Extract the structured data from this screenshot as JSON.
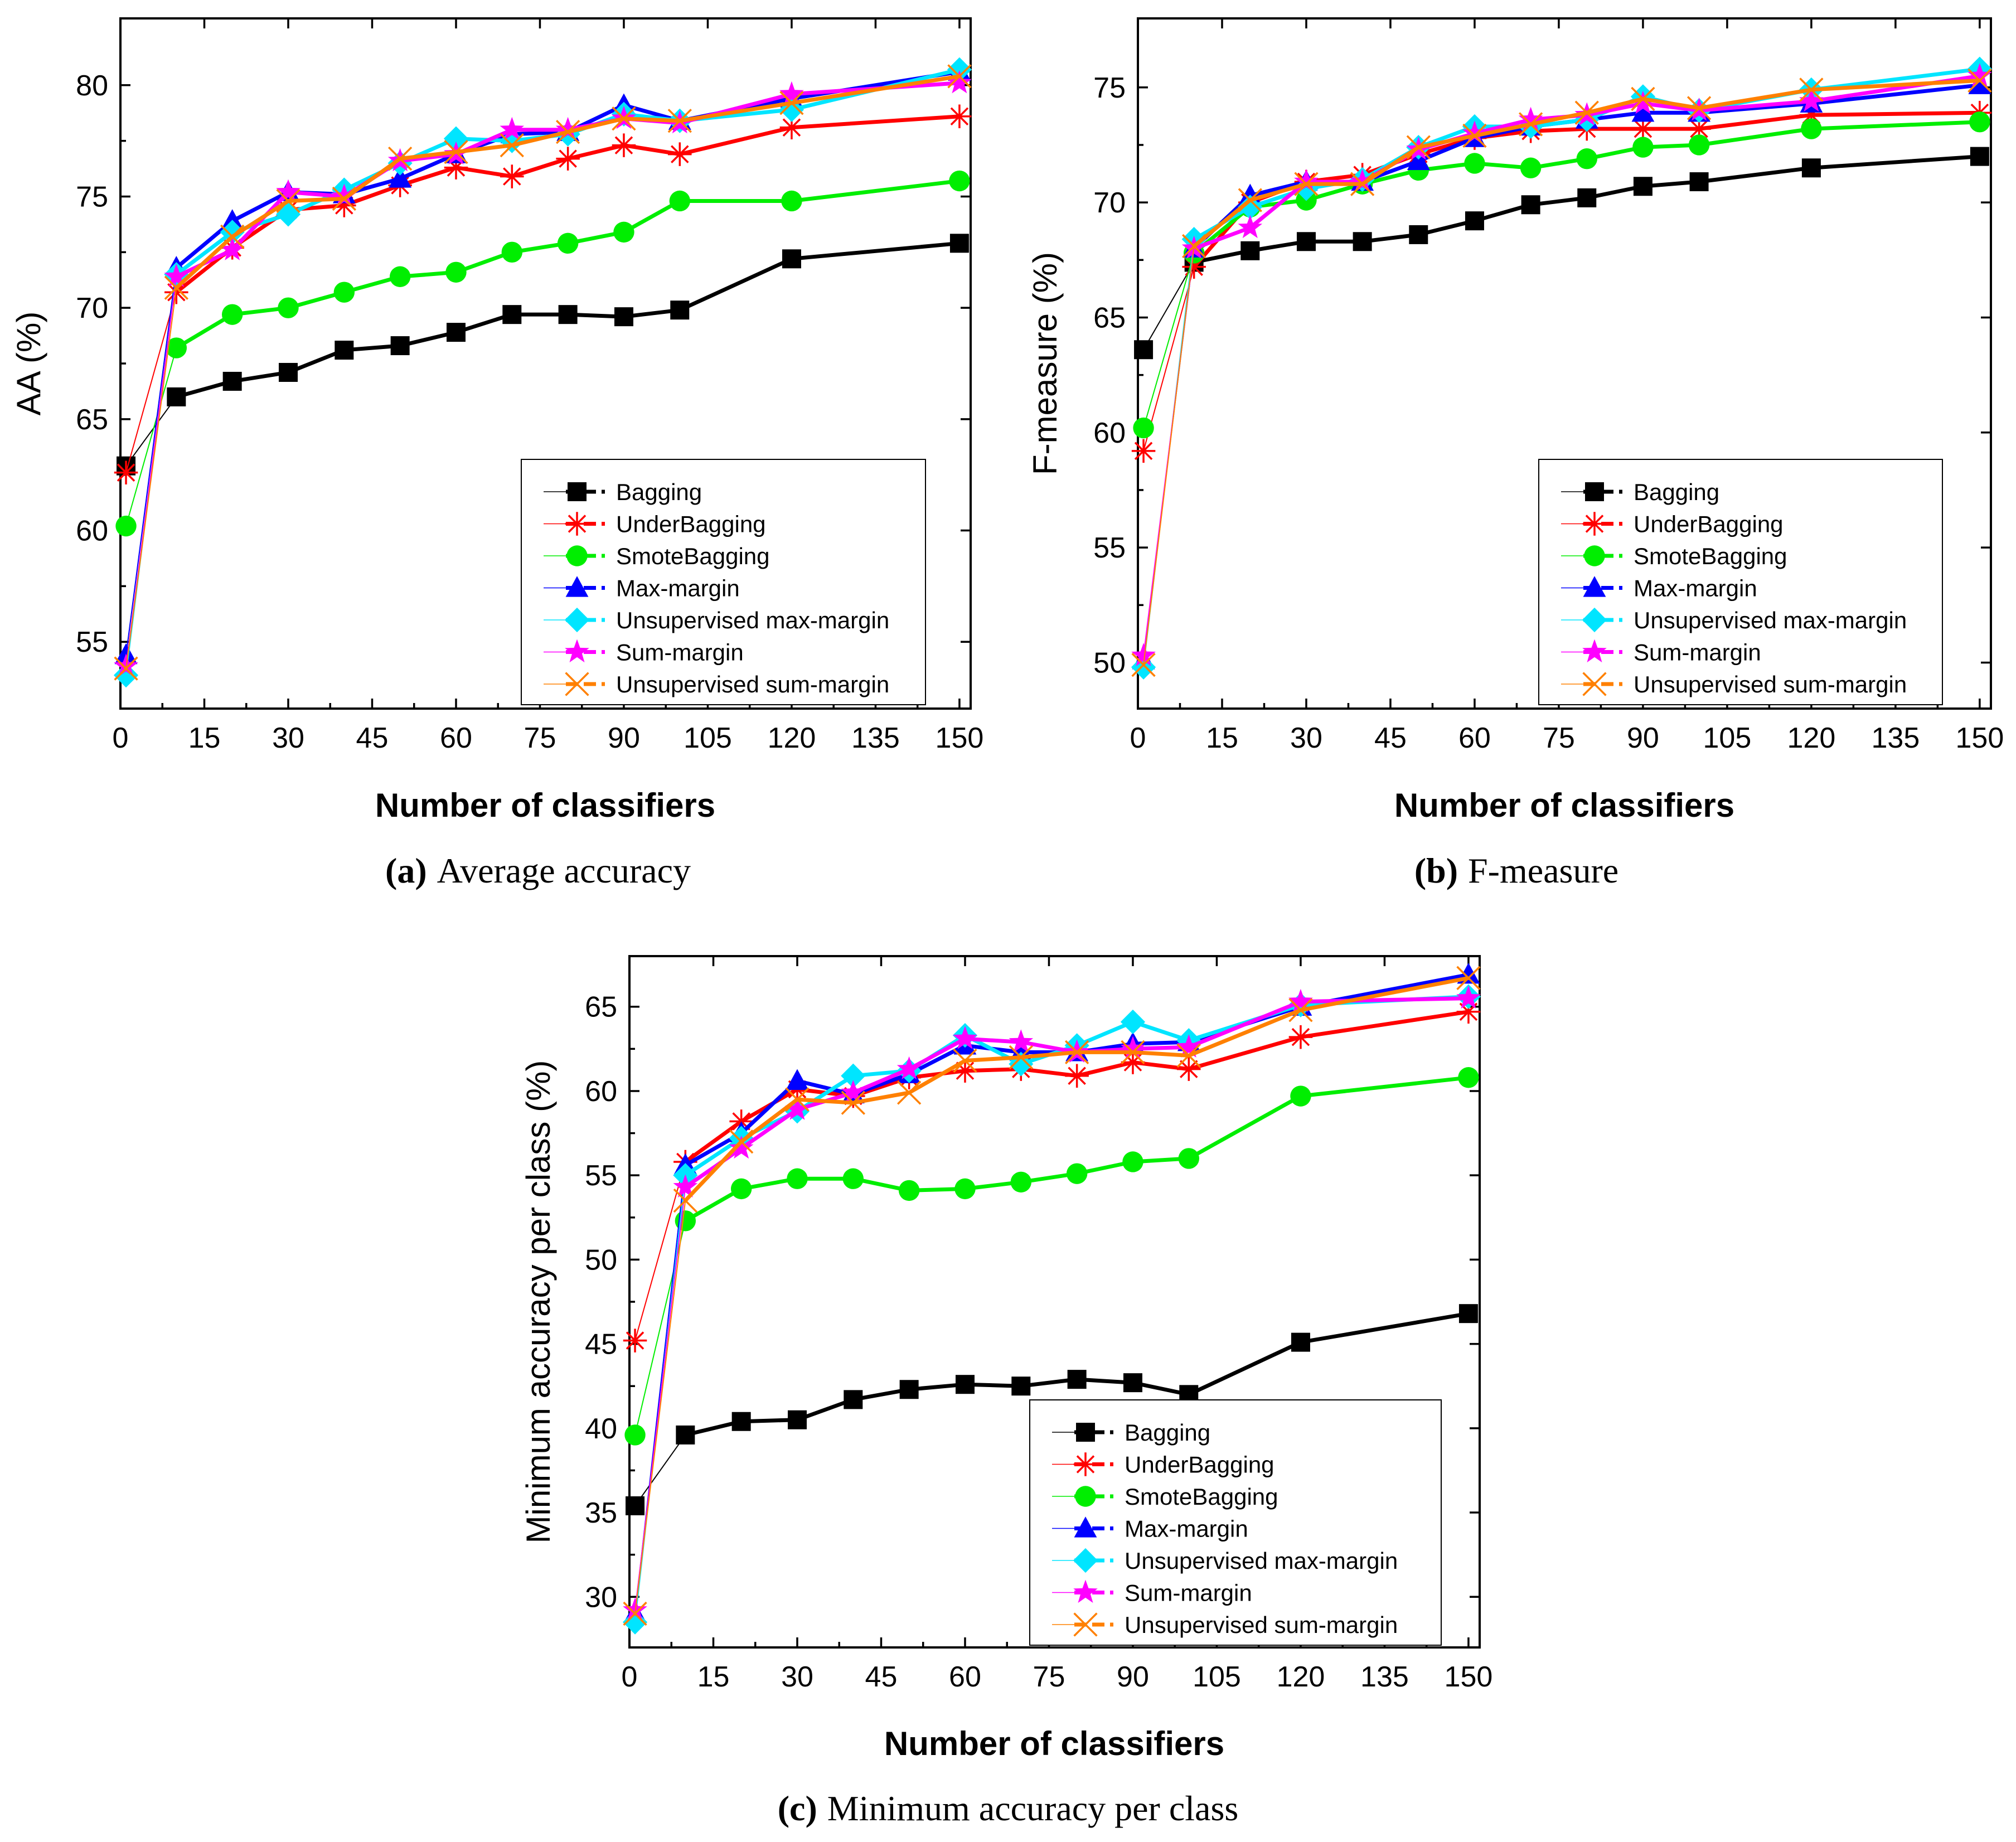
{
  "x_common": [
    1,
    10,
    20,
    30,
    40,
    50,
    60,
    70,
    80,
    90,
    100,
    120,
    150
  ],
  "legend_labels": [
    "Bagging",
    "UnderBagging",
    "SmoteBagging",
    "Max-margin",
    "Unsupervised max-margin",
    "Sum-margin",
    "Unsupervised sum-margin"
  ],
  "series_colors": {
    "Bagging": "#000000",
    "UnderBagging": "#ff0000",
    "SmoteBagging": "#00ee00",
    "Max-margin": "#0000ff",
    "Unsupervised max-margin": "#00e5ff",
    "Sum-margin": "#ff00ff",
    "Unsupervised sum-margin": "#ff8000"
  },
  "chart_data": [
    {
      "type": "line",
      "caption_letter": "(a)",
      "caption_text": "Average accuracy",
      "xlabel": "Number of classifiers",
      "ylabel": "AA (%)",
      "xlim": [
        0,
        152
      ],
      "ylim": [
        52,
        83
      ],
      "xticks": [
        0,
        15,
        30,
        45,
        60,
        75,
        90,
        105,
        120,
        135,
        150
      ],
      "yticks": [
        55,
        60,
        65,
        70,
        75,
        80
      ],
      "x": [
        1,
        10,
        20,
        30,
        40,
        50,
        60,
        70,
        80,
        90,
        100,
        120,
        150
      ],
      "series": [
        {
          "name": "Bagging",
          "values": [
            62.9,
            66.0,
            66.7,
            67.1,
            68.1,
            68.3,
            68.9,
            69.7,
            69.7,
            69.6,
            69.9,
            72.2,
            72.9
          ]
        },
        {
          "name": "UnderBagging",
          "values": [
            62.6,
            70.7,
            72.7,
            74.4,
            74.6,
            75.5,
            76.3,
            75.9,
            76.7,
            77.3,
            76.9,
            78.1,
            78.6
          ]
        },
        {
          "name": "SmoteBagging",
          "values": [
            60.2,
            68.2,
            69.7,
            70.0,
            70.7,
            71.4,
            71.6,
            72.5,
            72.9,
            73.4,
            74.8,
            74.8,
            75.7
          ]
        },
        {
          "name": "Max-margin",
          "values": [
            54.4,
            71.8,
            73.9,
            75.2,
            75.1,
            75.8,
            76.9,
            77.8,
            77.9,
            79.1,
            78.4,
            79.4,
            80.6
          ]
        },
        {
          "name": "Unsupervised max-margin",
          "values": [
            53.5,
            71.5,
            73.4,
            74.2,
            75.3,
            76.5,
            77.6,
            77.5,
            77.8,
            78.7,
            78.4,
            78.9,
            80.7
          ]
        },
        {
          "name": "Sum-margin",
          "values": [
            53.9,
            71.4,
            72.6,
            75.2,
            75.0,
            76.6,
            76.9,
            78.0,
            78.0,
            78.5,
            78.3,
            79.6,
            80.1
          ]
        },
        {
          "name": "Unsupervised sum-margin",
          "values": [
            53.8,
            70.9,
            73.2,
            74.8,
            74.9,
            76.7,
            77.0,
            77.3,
            77.9,
            78.5,
            78.4,
            79.2,
            80.4
          ]
        }
      ]
    },
    {
      "type": "line",
      "caption_letter": "(b)",
      "caption_text": "F-measure",
      "xlabel": "Number of classifiers",
      "ylabel": "F-measure (%)",
      "xlim": [
        0,
        152
      ],
      "ylim": [
        48,
        78
      ],
      "xticks": [
        0,
        15,
        30,
        45,
        60,
        75,
        90,
        105,
        120,
        135,
        150
      ],
      "yticks": [
        50,
        55,
        60,
        65,
        70,
        75
      ],
      "x": [
        1,
        10,
        20,
        30,
        40,
        50,
        60,
        70,
        80,
        90,
        100,
        120,
        150
      ],
      "series": [
        {
          "name": "Bagging",
          "values": [
            63.6,
            67.4,
            67.9,
            68.3,
            68.3,
            68.6,
            69.2,
            69.9,
            70.2,
            70.7,
            70.9,
            71.5,
            72.0
          ]
        },
        {
          "name": "UnderBagging",
          "values": [
            59.2,
            67.2,
            70.0,
            70.9,
            71.2,
            72.1,
            72.8,
            73.1,
            73.2,
            73.2,
            73.2,
            73.8,
            73.9
          ]
        },
        {
          "name": "SmoteBagging",
          "values": [
            60.2,
            67.8,
            69.8,
            70.1,
            70.8,
            71.4,
            71.7,
            71.5,
            71.9,
            72.4,
            72.5,
            73.2,
            73.5
          ]
        },
        {
          "name": "Max-margin",
          "values": [
            50.1,
            68.0,
            70.3,
            70.9,
            70.9,
            71.8,
            72.8,
            73.3,
            73.6,
            73.9,
            73.9,
            74.3,
            75.1
          ]
        },
        {
          "name": "Unsupervised max-margin",
          "values": [
            49.8,
            68.4,
            69.8,
            70.6,
            71.0,
            72.4,
            73.3,
            73.3,
            73.6,
            74.6,
            74.0,
            74.9,
            75.8
          ]
        },
        {
          "name": "Sum-margin",
          "values": [
            50.3,
            68.0,
            68.9,
            70.9,
            70.9,
            72.3,
            73.0,
            73.6,
            73.8,
            74.3,
            74.0,
            74.4,
            75.5
          ]
        },
        {
          "name": "Unsupervised sum-margin",
          "values": [
            49.9,
            68.1,
            70.1,
            70.8,
            70.8,
            72.4,
            72.9,
            73.4,
            73.9,
            74.5,
            74.1,
            74.9,
            75.3
          ]
        }
      ]
    },
    {
      "type": "line",
      "caption_letter": "(c)",
      "caption_text": "Minimum accuracy per class",
      "xlabel": "Number of classifiers",
      "ylabel": "Minimum accuracy per class (%)",
      "xlim": [
        0,
        152
      ],
      "ylim": [
        27,
        68
      ],
      "xticks": [
        0,
        15,
        30,
        45,
        60,
        75,
        90,
        105,
        120,
        135,
        150
      ],
      "yticks": [
        30,
        35,
        40,
        45,
        50,
        55,
        60,
        65
      ],
      "x": [
        1,
        10,
        20,
        30,
        40,
        50,
        60,
        70,
        80,
        90,
        100,
        120,
        150
      ],
      "series": [
        {
          "name": "Bagging",
          "values": [
            35.4,
            39.6,
            40.4,
            40.5,
            41.7,
            42.3,
            42.6,
            42.5,
            42.9,
            42.7,
            42.0,
            45.1,
            46.8
          ]
        },
        {
          "name": "UnderBagging",
          "values": [
            45.2,
            55.8,
            58.2,
            60.1,
            59.7,
            60.8,
            61.2,
            61.3,
            60.9,
            61.7,
            61.3,
            63.2,
            64.7
          ]
        },
        {
          "name": "SmoteBagging",
          "values": [
            39.6,
            52.3,
            54.2,
            54.8,
            54.8,
            54.1,
            54.2,
            54.6,
            55.1,
            55.8,
            56.0,
            59.7,
            60.8
          ]
        },
        {
          "name": "Max-margin",
          "values": [
            29.0,
            55.6,
            57.5,
            60.6,
            59.8,
            61.0,
            62.7,
            62.3,
            62.3,
            62.8,
            62.9,
            65.0,
            66.9
          ]
        },
        {
          "name": "Unsupervised max-margin",
          "values": [
            28.5,
            55.0,
            57.2,
            58.8,
            60.9,
            61.2,
            63.3,
            61.6,
            62.7,
            64.1,
            63.0,
            65.1,
            65.6
          ]
        },
        {
          "name": "Sum-margin",
          "values": [
            29.2,
            54.3,
            56.6,
            58.9,
            59.9,
            61.3,
            63.1,
            62.9,
            62.3,
            62.5,
            62.6,
            65.3,
            65.5
          ]
        },
        {
          "name": "Unsupervised sum-margin",
          "values": [
            29.0,
            53.5,
            57.0,
            59.5,
            59.3,
            59.9,
            61.8,
            62.0,
            62.3,
            62.3,
            62.1,
            64.8,
            66.7
          ]
        }
      ]
    }
  ]
}
